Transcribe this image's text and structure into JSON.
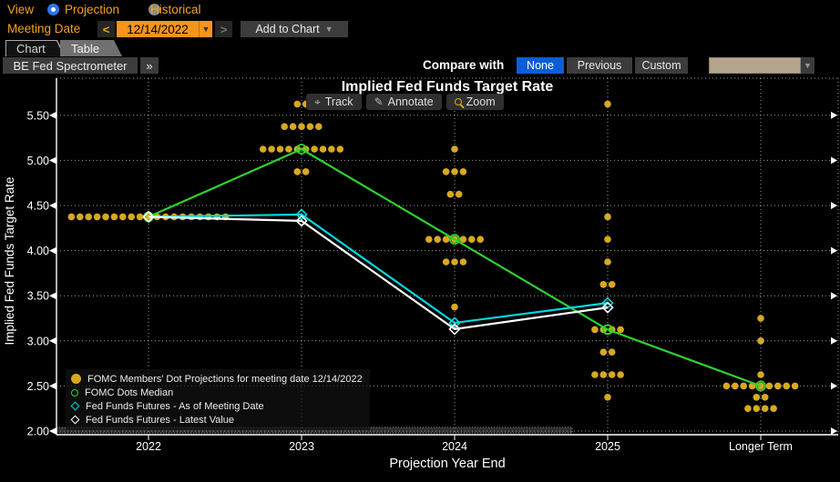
{
  "header": {
    "view_label": "View",
    "radio_projection": "Projection",
    "radio_historical": "Historical",
    "meeting_date_label": "Meeting Date",
    "prev_date": "<",
    "next_date": ">",
    "date_value": "12/14/2022",
    "add_to_chart_label": "Add to Chart",
    "tabs": [
      {
        "label": "Chart"
      },
      {
        "label": "Table"
      }
    ],
    "spectrometer_label": "BE Fed Spectrometer",
    "expand_label": "»",
    "compare_label": "Compare with",
    "compare_options": [
      {
        "label": "None"
      },
      {
        "label": "Previous"
      },
      {
        "label": "Custom"
      }
    ]
  },
  "chart": {
    "title": "Implied Fed Funds Target Rate",
    "toolbar": [
      {
        "label": "Track"
      },
      {
        "label": "Annotate"
      },
      {
        "label": "Zoom"
      }
    ]
  },
  "chart_data": {
    "type": "scatter",
    "title": "Implied Fed Funds Target Rate",
    "xlabel": "Projection Year End",
    "ylabel": "Implied Fed Funds Target Rate",
    "categories": [
      "2022",
      "2023",
      "2024",
      "2025",
      "Longer Term"
    ],
    "yticks": [
      5.5,
      5.0,
      4.5,
      4.0,
      3.5,
      3.0,
      2.5,
      2.0
    ],
    "ylim": [
      1.95,
      5.9
    ],
    "grid": true,
    "colors": {
      "dots": "#d8a91f",
      "median": "#2ed32e",
      "futures_meeting": "#00d8e0",
      "futures_latest": "#ffffff"
    },
    "dot_rows": [
      {
        "category": "2022",
        "value": 4.375,
        "count": 19
      },
      {
        "category": "2023",
        "value": 5.625,
        "count": 2
      },
      {
        "category": "2023",
        "value": 5.375,
        "count": 5
      },
      {
        "category": "2023",
        "value": 5.125,
        "count": 10
      },
      {
        "category": "2023",
        "value": 4.875,
        "count": 2
      },
      {
        "category": "2024",
        "value": 5.125,
        "count": 1
      },
      {
        "category": "2024",
        "value": 4.875,
        "count": 3
      },
      {
        "category": "2024",
        "value": 4.625,
        "count": 2
      },
      {
        "category": "2024",
        "value": 4.125,
        "count": 7
      },
      {
        "category": "2024",
        "value": 3.875,
        "count": 3
      },
      {
        "category": "2024",
        "value": 3.375,
        "count": 1
      },
      {
        "category": "2025",
        "value": 5.625,
        "count": 1
      },
      {
        "category": "2025",
        "value": 4.375,
        "count": 1
      },
      {
        "category": "2025",
        "value": 4.125,
        "count": 1
      },
      {
        "category": "2025",
        "value": 3.875,
        "count": 1
      },
      {
        "category": "2025",
        "value": 3.625,
        "count": 2
      },
      {
        "category": "2025",
        "value": 3.125,
        "count": 4
      },
      {
        "category": "2025",
        "value": 2.875,
        "count": 2
      },
      {
        "category": "2025",
        "value": 2.625,
        "count": 4
      },
      {
        "category": "2025",
        "value": 2.375,
        "count": 1
      },
      {
        "category": "Longer Term",
        "value": 3.25,
        "count": 1
      },
      {
        "category": "Longer Term",
        "value": 3.0,
        "count": 1
      },
      {
        "category": "Longer Term",
        "value": 2.625,
        "count": 1
      },
      {
        "category": "Longer Term",
        "value": 2.5,
        "count": 9
      },
      {
        "category": "Longer Term",
        "value": 2.375,
        "count": 2
      },
      {
        "category": "Longer Term",
        "value": 2.25,
        "count": 4
      }
    ],
    "series": [
      {
        "name": "FOMC Dots Median",
        "marker": "circle",
        "color": "#2ed32e",
        "points": [
          [
            "2022",
            4.375
          ],
          [
            "2023",
            5.125
          ],
          [
            "2024",
            4.125
          ],
          [
            "2025",
            3.125
          ],
          [
            "Longer Term",
            2.5
          ]
        ]
      },
      {
        "name": "Fed Funds Futures - As of Meeting Date",
        "marker": "diamond",
        "color": "#00d8e0",
        "points": [
          [
            "2022",
            4.375
          ],
          [
            "2023",
            4.4
          ],
          [
            "2024",
            3.2
          ],
          [
            "2025",
            3.42
          ]
        ]
      },
      {
        "name": "Fed Funds Futures - Latest Value",
        "marker": "diamond",
        "color": "#ffffff",
        "points": [
          [
            "2022",
            4.375
          ],
          [
            "2023",
            4.33
          ],
          [
            "2024",
            3.13
          ],
          [
            "2025",
            3.37
          ]
        ]
      }
    ],
    "legend": [
      {
        "label": "FOMC Members' Dot Projections for meeting date 12/14/2022",
        "marker": "filled-circle",
        "color": "#d8a91f"
      },
      {
        "label": "FOMC Dots Median",
        "marker": "open-circle",
        "color": "#2ed32e"
      },
      {
        "label": "Fed Funds Futures - As of Meeting Date",
        "marker": "open-diamond",
        "color": "#00d8e0"
      },
      {
        "label": "Fed Funds Futures - Latest Value",
        "marker": "open-diamond",
        "color": "#ffffff"
      }
    ]
  }
}
